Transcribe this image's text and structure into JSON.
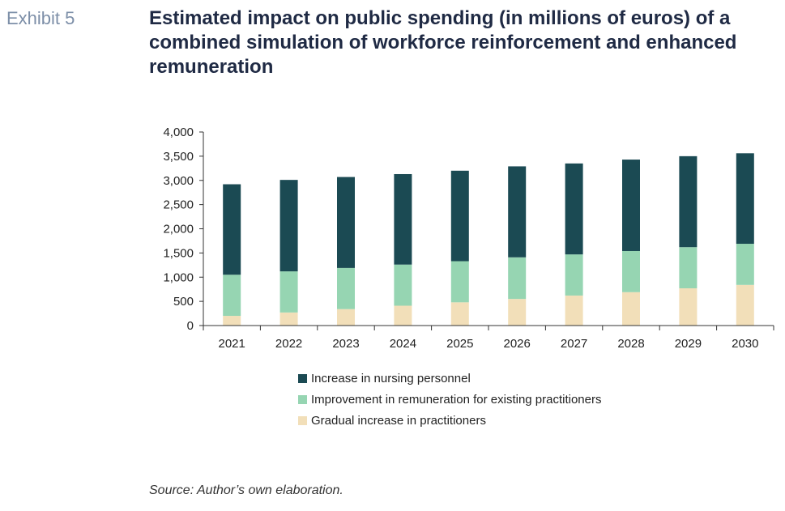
{
  "exhibit_label": "Exhibit 5",
  "source": "Source: Author’s own elaboration.",
  "chart_data": {
    "type": "bar",
    "stacked": true,
    "title": "Estimated impact on public spending (in millions of euros) of a combined simulation of workforce reinforcement and enhanced remuneration",
    "xlabel": "",
    "ylabel": "",
    "ylim": [
      0,
      4000
    ],
    "yticks": [
      0,
      500,
      1000,
      1500,
      2000,
      2500,
      3000,
      3500,
      4000
    ],
    "ytick_labels": [
      "0",
      "500",
      "1,000",
      "1,500",
      "2,000",
      "2,500",
      "3,000",
      "3,500",
      "4,000"
    ],
    "categories": [
      "2021",
      "2022",
      "2023",
      "2024",
      "2025",
      "2026",
      "2027",
      "2028",
      "2029",
      "2030"
    ],
    "series": [
      {
        "name": "Gradual increase in practitioners",
        "color": "#f2dfb9",
        "values": [
          200,
          270,
          340,
          410,
          480,
          550,
          620,
          690,
          770,
          840
        ]
      },
      {
        "name": "Improvement in remuneration for existing practitioners",
        "color": "#96d5b2",
        "values": [
          850,
          850,
          850,
          850,
          850,
          860,
          850,
          850,
          850,
          850
        ]
      },
      {
        "name": "Increase in nursing personnel",
        "color": "#1b4a53",
        "values": [
          1870,
          1890,
          1880,
          1870,
          1870,
          1880,
          1880,
          1890,
          1880,
          1870
        ]
      }
    ],
    "legend_order": [
      "Increase in nursing personnel",
      "Improvement in remuneration for existing practitioners",
      "Gradual increase in practitioners"
    ],
    "legend_position": "bottom",
    "grid": false
  }
}
